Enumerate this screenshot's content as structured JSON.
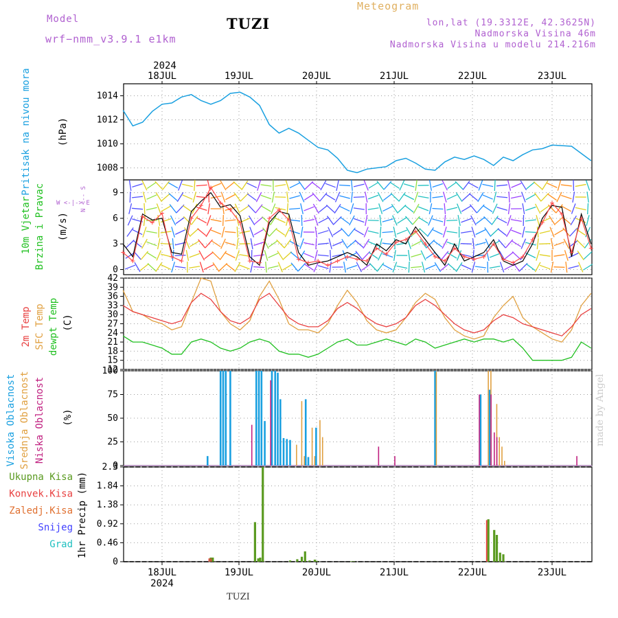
{
  "header": {
    "model_label": "Model",
    "model_name": "wrf−nmm_v3.9.1  e1km",
    "station": "TUZI",
    "meteogram": "Meteogram",
    "coords": "lon,lat (19.3312E, 42.3625N)",
    "elevation": "Nadmorska Visina 46m",
    "model_elevation": "Nadmorska Visina u modelu 214.216m"
  },
  "time_axis": {
    "year": "2024",
    "days": [
      "18JUL",
      "19JUL",
      "20JUL",
      "21JUL",
      "22JUL",
      "23JUL"
    ]
  },
  "footer": {
    "station": "TUZI",
    "credit": "made by Angel"
  },
  "colors": {
    "pressure": "#1aa0e0",
    "wind_speed": "#000000",
    "gust": "#ff4a4a",
    "t2m": "#e84040",
    "tsfc": "#e0a040",
    "dewpt": "#20c020",
    "cloud_high": "#1aa0e0",
    "cloud_mid": "#e0a040",
    "cloud_low": "#c02080",
    "precip_total": "#5a9a20",
    "precip_conv": "#e84040"
  },
  "wind_compass": {
    "n": "N",
    "s": "S",
    "e": "E",
    "w": "W"
  },
  "chart_data": [
    {
      "type": "line",
      "panel": "pressure",
      "ylabel": [
        "Pritisak na nivou mora",
        "(hPa)"
      ],
      "ylim": [
        1007,
        1015
      ],
      "yticks": [
        "1008",
        "1010",
        "1012",
        "1014"
      ],
      "x_hours": [
        0,
        3,
        6,
        9,
        12,
        15,
        18,
        21,
        24,
        27,
        30,
        33,
        36,
        39,
        42,
        45,
        48,
        51,
        54,
        57,
        60,
        63,
        66,
        69,
        72,
        75,
        78,
        81,
        84,
        87,
        90,
        93,
        96,
        99,
        102,
        105,
        108,
        111,
        114,
        117,
        120,
        123,
        126,
        129,
        132,
        138,
        144
      ],
      "series": [
        {
          "values": [
            1012.8,
            1011.5,
            1011.8,
            1012.7,
            1013.3,
            1013.4,
            1013.9,
            1014.1,
            1013.6,
            1013.3,
            1013.6,
            1014.2,
            1014.3,
            1013.9,
            1013.2,
            1011.6,
            1010.9,
            1011.3,
            1010.9,
            1010.3,
            1009.7,
            1009.5,
            1008.8,
            1007.8,
            1007.6,
            1007.9,
            1008.0,
            1008.1,
            1008.6,
            1008.8,
            1008.4,
            1007.9,
            1007.8,
            1008.5,
            1008.9,
            1008.7,
            1009.0,
            1008.7,
            1008.2,
            1008.9,
            1008.6,
            1009.1,
            1009.5,
            1009.6,
            1009.9,
            1009.8,
            1008.6
          ]
        }
      ]
    },
    {
      "type": "line",
      "panel": "wind",
      "ylabel": [
        "10m Vjetar",
        "Brzina i Pravac",
        "(m/s)"
      ],
      "ylim": [
        -0.6,
        10.5
      ],
      "yticks": [
        "0",
        "3",
        "6",
        "9"
      ],
      "x_hours": [
        0,
        3,
        6,
        9,
        12,
        15,
        18,
        21,
        24,
        27,
        30,
        33,
        36,
        39,
        42,
        45,
        48,
        51,
        54,
        57,
        60,
        63,
        66,
        69,
        72,
        75,
        78,
        81,
        84,
        87,
        90,
        93,
        96,
        99,
        102,
        105,
        108,
        111,
        114,
        117,
        120,
        123,
        126,
        129,
        132,
        135,
        138,
        141,
        144
      ],
      "series": [
        {
          "values": [
            3.0,
            1.5,
            6.5,
            5.8,
            6.0,
            2.0,
            1.8,
            6.8,
            8.0,
            9.0,
            7.3,
            7.6,
            6.3,
            1.5,
            0.5,
            5.5,
            6.8,
            6.5,
            2.0,
            0.5,
            0.8,
            1.0,
            1.5,
            2.0,
            1.5,
            0.5,
            3.0,
            2.2,
            3.5,
            3.0,
            5.0,
            3.5,
            2.0,
            0.5,
            3.0,
            1.0,
            1.5,
            2.0,
            3.5,
            1.0,
            0.5,
            1.0,
            3.0,
            6.0,
            7.5,
            7.3,
            1.5,
            6.5,
            3.0
          ]
        },
        {
          "values": [
            2.0,
            1.0,
            6.2,
            5.5,
            6.6,
            1.5,
            1.0,
            6.0,
            7.5,
            9.6,
            7.8,
            7.0,
            5.5,
            1.0,
            0.8,
            6.0,
            7.0,
            5.8,
            1.2,
            0.8,
            1.0,
            0.5,
            1.0,
            1.5,
            1.2,
            1.0,
            2.5,
            1.8,
            3.2,
            3.5,
            4.5,
            3.0,
            1.5,
            1.0,
            2.5,
            1.5,
            1.2,
            1.5,
            3.0,
            1.2,
            0.8,
            1.5,
            3.5,
            5.5,
            7.8,
            6.5,
            2.0,
            6.0,
            2.5
          ]
        }
      ]
    },
    {
      "type": "line",
      "panel": "temperature",
      "ylabel": [
        "2m Temp",
        "SFC Temp",
        "dewpt Temp",
        "(C)"
      ],
      "ylim": [
        12,
        42
      ],
      "yticks": [
        "12",
        "15",
        "18",
        "21",
        "24",
        "27",
        "30",
        "33",
        "36",
        "39",
        "42"
      ],
      "x_hours": [
        0,
        3,
        6,
        9,
        12,
        15,
        18,
        21,
        24,
        27,
        30,
        33,
        36,
        39,
        42,
        45,
        48,
        51,
        54,
        57,
        60,
        63,
        66,
        69,
        72,
        75,
        78,
        81,
        84,
        87,
        90,
        93,
        96,
        99,
        102,
        105,
        108,
        111,
        114,
        117,
        120,
        123,
        126,
        129,
        132,
        135,
        138,
        141,
        144
      ],
      "series": [
        {
          "name": "2m Temp",
          "values": [
            33,
            31,
            30,
            29,
            28,
            27,
            28,
            34,
            37,
            35,
            31,
            28,
            27,
            29,
            35,
            37,
            33,
            29,
            27,
            26,
            26,
            28,
            32,
            34,
            32,
            29,
            27,
            26,
            27,
            29,
            33,
            35,
            33,
            30,
            27,
            25,
            24,
            25,
            28,
            30,
            29,
            27,
            26,
            25,
            24,
            23,
            26,
            30,
            32
          ]
        },
        {
          "name": "SFC Temp",
          "values": [
            38,
            31,
            30,
            28,
            27,
            25,
            26,
            34,
            42,
            41,
            31,
            27,
            25,
            28,
            36,
            41,
            35,
            27,
            25,
            25,
            24,
            27,
            33,
            38,
            34,
            28,
            25,
            24,
            25,
            29,
            34,
            37,
            35,
            29,
            25,
            23,
            22,
            23,
            29,
            33,
            36,
            29,
            26,
            24,
            22,
            21,
            25,
            33,
            37
          ]
        },
        {
          "name": "dewpt Temp",
          "values": [
            23,
            21,
            21,
            20,
            19,
            17,
            17,
            21,
            22,
            21,
            19,
            18,
            19,
            21,
            22,
            21,
            18,
            17,
            17,
            16,
            17,
            19,
            21,
            22,
            20,
            20,
            21,
            22,
            21,
            20,
            22,
            21,
            19,
            20,
            21,
            22,
            21,
            22,
            22,
            21,
            22,
            19,
            15,
            15,
            15,
            15,
            16,
            21,
            19
          ]
        }
      ]
    },
    {
      "type": "bar",
      "panel": "clouds",
      "ylabel": [
        "Visoka Oblacnost",
        "Srednja Oblacnost",
        "Niska Oblacnost",
        "(%)"
      ],
      "ylim": [
        0,
        100
      ],
      "yticks": [
        "0",
        "25",
        "50",
        "75",
        "100"
      ],
      "x_hours": [
        26,
        26.8,
        27.6,
        28.3,
        29.2,
        30,
        30.8,
        31.6,
        33,
        35,
        40,
        41,
        41.8,
        42.6,
        43.6,
        44.8,
        45.8,
        46.8,
        47.6,
        48.4,
        49.4,
        50.4,
        51.4,
        53,
        54.6,
        55.4,
        56.2,
        57,
        57.8,
        58.6,
        59.4,
        60.2,
        61,
        62,
        63,
        64,
        66,
        68,
        79,
        84,
        96,
        97,
        110,
        111,
        112,
        112.8,
        113.6,
        114.6,
        115.4,
        116.2,
        117,
        118,
        140,
        144
      ],
      "series": [
        {
          "name": "Visoka Oblacnost",
          "values": [
            10,
            0,
            0,
            0,
            0,
            100,
            100,
            100,
            100,
            0,
            0,
            100,
            100,
            100,
            47,
            0,
            100,
            100,
            98,
            70,
            29,
            28,
            27,
            0,
            0,
            0,
            70,
            9,
            0,
            0,
            40,
            0,
            0,
            0,
            0,
            0,
            0,
            0,
            0,
            0,
            100,
            0,
            75,
            0,
            0,
            80,
            0,
            0,
            0,
            0,
            0,
            0,
            0,
            0
          ]
        },
        {
          "name": "Srednja Oblacnost",
          "values": [
            0,
            0,
            0,
            0,
            0,
            0,
            0,
            0,
            0,
            0,
            0,
            0,
            0,
            0,
            0,
            0,
            0,
            0,
            0,
            0,
            0,
            0,
            0,
            22,
            68,
            10,
            0,
            0,
            40,
            10,
            0,
            48,
            30,
            0,
            0,
            0,
            0,
            0,
            0,
            0,
            99,
            0,
            0,
            0,
            100,
            100,
            0,
            65,
            30,
            20,
            5,
            0,
            0,
            0
          ]
        },
        {
          "name": "Niska Oblacnost",
          "values": [
            0,
            0,
            0,
            0,
            0,
            0,
            0,
            0,
            0,
            0,
            43,
            0,
            0,
            0,
            0,
            0,
            90,
            0,
            0,
            0,
            0,
            0,
            0,
            0,
            0,
            0,
            0,
            0,
            0,
            0,
            0,
            0,
            0,
            0,
            0,
            0,
            0,
            0,
            20,
            10,
            0,
            0,
            75,
            0,
            0,
            0,
            75,
            35,
            30,
            0,
            0,
            0,
            10,
            0
          ]
        }
      ]
    },
    {
      "type": "bar",
      "panel": "precipitation",
      "ylabel": [
        "1hr Precip (mm)"
      ],
      "legend": [
        "Ukupna Kisa",
        "Konvek.Kisa",
        "Zaledj.Kisa",
        "Snijeg",
        "Grad"
      ],
      "ylim": [
        0,
        2.3
      ],
      "yticks": [
        "0",
        "0.46",
        "0.92",
        "1.38",
        "1.84",
        "2.3"
      ],
      "x_hours": [
        27,
        27.6,
        40.6,
        41.6,
        42.2,
        43,
        51.4,
        53.6,
        55,
        56,
        57.4,
        59,
        59.6,
        70.2,
        71,
        112.4,
        114.2,
        115,
        116,
        117
      ],
      "series": [
        {
          "name": "Ukupna Kisa",
          "values": [
            0.1,
            0.1,
            0.96,
            0.08,
            0.1,
            2.3,
            0.03,
            0.06,
            0.12,
            0.25,
            0.03,
            0.05,
            0.02,
            0.01,
            0.01,
            1.03,
            0.77,
            0.65,
            0.22,
            0.18
          ]
        },
        {
          "name": "Konvek.Kisa",
          "values": [
            0.08,
            0.08,
            0,
            0,
            0,
            0,
            0,
            0,
            0,
            0,
            0,
            0,
            0,
            0,
            0,
            1.01,
            0,
            0,
            0,
            0
          ]
        }
      ]
    }
  ]
}
